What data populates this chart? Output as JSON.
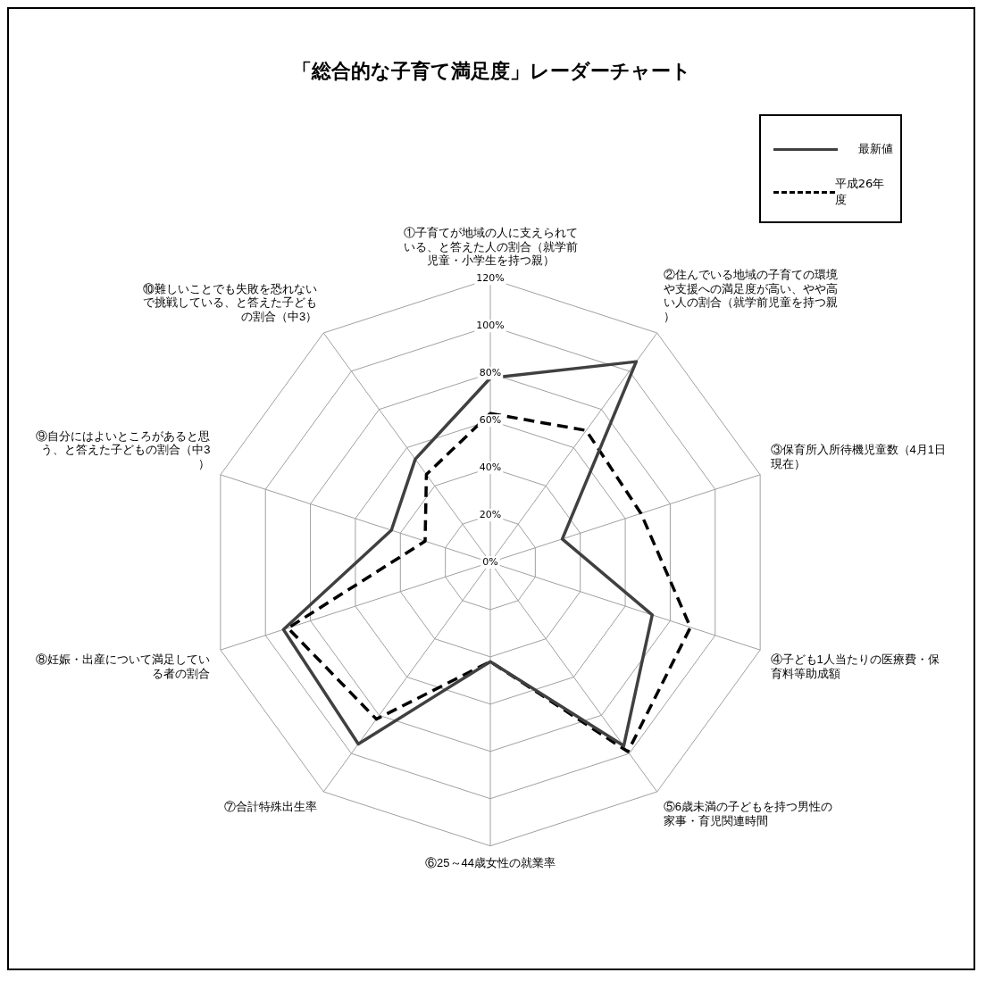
{
  "chart_data": {
    "type": "radar",
    "title": "「総合的な子育て満足度」レーダーチャート",
    "categories": [
      "①子育てが地域の人に支えられている、と答えた人の割合（就学前児童・小学生を持つ親）",
      "②住んでいる地域の子育ての環境や支援への満足度が高い、やや高い人の割合（就学前児童を持つ親）",
      "③保育所入所待機児童数（4月1日現在）",
      "④子ども1人当たりの医療費・保育料等助成額",
      "⑤6歳未満の子どもを持つ男性の家事・育児関連時間",
      "⑥25～44歳女性の就業率",
      "⑦合計特殊出生率",
      "⑧妊娠・出産について満足している者の割合",
      "⑨自分にはよいところがあると思う、と答えた子どもの割合（中3）",
      "⑩難しいことでも失敗を恐れないで挑戦している、と答えた子どもの割合（中3）"
    ],
    "series": [
      {
        "name": "最新値",
        "color": "#404040",
        "line_style": "solid",
        "values": [
          78,
          105,
          32,
          72,
          96,
          42,
          95,
          92,
          44,
          54
        ]
      },
      {
        "name": "平成26年度",
        "color": "#000000",
        "line_style": "dashed",
        "values": [
          63,
          69,
          67,
          89,
          99,
          42,
          82,
          90,
          29,
          46
        ]
      }
    ],
    "ylim": [
      0,
      120
    ],
    "yticks": [
      {
        "value": 0,
        "label": "0%"
      },
      {
        "value": 20,
        "label": "20%"
      },
      {
        "value": 40,
        "label": "40%"
      },
      {
        "value": 60,
        "label": "60%"
      },
      {
        "value": 80,
        "label": "80%"
      },
      {
        "value": 100,
        "label": "100%"
      },
      {
        "value": 120,
        "label": "120%"
      }
    ],
    "grid": true,
    "legend": "top right",
    "marker": "none"
  }
}
